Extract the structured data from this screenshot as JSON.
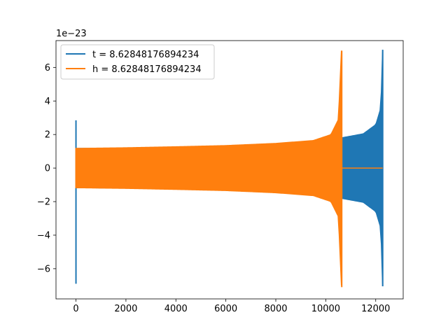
{
  "chart_data": {
    "type": "line",
    "title": "",
    "xlabel": "",
    "ylabel": "",
    "y_scale_label": "1e−23",
    "xlim": [
      -800,
      13100
    ],
    "ylim": [
      -7.8,
      7.6
    ],
    "x_ticks": [
      0,
      2000,
      4000,
      6000,
      8000,
      10000,
      12000
    ],
    "x_tick_labels": [
      "0",
      "2000",
      "4000",
      "6000",
      "8000",
      "10000",
      "12000"
    ],
    "y_ticks": [
      -6,
      -4,
      -2,
      0,
      2,
      4,
      6
    ],
    "y_tick_labels": [
      "−6",
      "−4",
      "−2",
      "0",
      "2",
      "4",
      "6"
    ],
    "grid": false,
    "legend_position": "top-left",
    "series": [
      {
        "name": "t = 8.62848176894234",
        "color": "#1f77b4",
        "initial_spike": {
          "x": 0,
          "min": -6.9,
          "max": 2.85
        },
        "envelope": [
          {
            "x": 0,
            "amp": 1.18
          },
          {
            "x": 2000,
            "amp": 1.2
          },
          {
            "x": 4000,
            "amp": 1.23
          },
          {
            "x": 6000,
            "amp": 1.26
          },
          {
            "x": 8000,
            "amp": 1.31
          },
          {
            "x": 10000,
            "amp": 1.43
          },
          {
            "x": 10660,
            "amp": 1.82
          },
          {
            "x": 11500,
            "amp": 2.05
          },
          {
            "x": 12000,
            "amp": 2.6
          },
          {
            "x": 12200,
            "amp": 3.6
          },
          {
            "x": 12270,
            "amp": 7.05
          }
        ],
        "merger": {
          "x": 12280,
          "min": -7.05,
          "max": 7.05
        },
        "after_merger": {
          "x_end": 12280,
          "value": 0
        }
      },
      {
        "name": "h = 8.62848176894234",
        "color": "#ff7f0e",
        "initial_spike": {
          "x": 0,
          "min": -1.2,
          "max": 1.2
        },
        "envelope": [
          {
            "x": 0,
            "amp": 1.18
          },
          {
            "x": 2000,
            "amp": 1.22
          },
          {
            "x": 4000,
            "amp": 1.28
          },
          {
            "x": 6000,
            "amp": 1.35
          },
          {
            "x": 8000,
            "amp": 1.48
          },
          {
            "x": 9500,
            "amp": 1.65
          },
          {
            "x": 10200,
            "amp": 2.0
          },
          {
            "x": 10500,
            "amp": 2.9
          },
          {
            "x": 10620,
            "amp": 7.0
          }
        ],
        "merger": {
          "x": 10640,
          "min": -7.1,
          "max": 7.0
        },
        "after_merger": {
          "x_end": 12280,
          "value": 0
        }
      }
    ]
  }
}
